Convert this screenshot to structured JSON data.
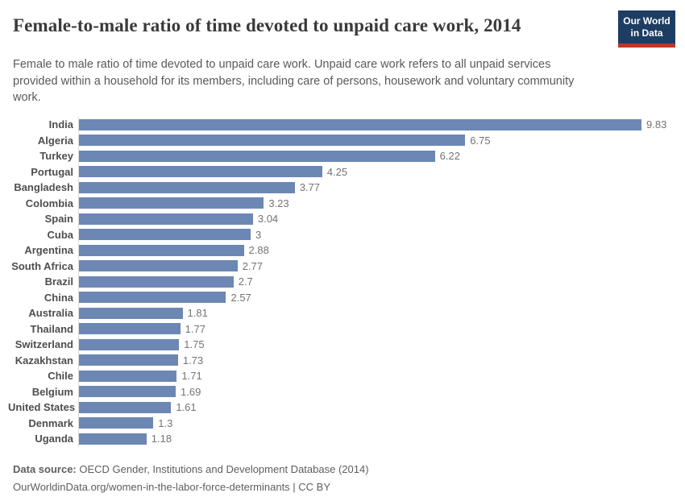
{
  "header": {
    "title": "Female-to-male ratio of time devoted to unpaid care work, 2014",
    "subtitle": "Female to male ratio of time devoted to unpaid care work. Unpaid care work refers to all unpaid services provided within a household for its members, including care of persons, housework and voluntary community work."
  },
  "logo": {
    "line1": "Our World",
    "line2": "in Data"
  },
  "chart_data": {
    "type": "bar",
    "orientation": "horizontal",
    "title": "Female-to-male ratio of time devoted to unpaid care work, 2014",
    "xlabel": "",
    "ylabel": "",
    "xlim": [
      0,
      9.83
    ],
    "grid": false,
    "legend": false,
    "categories": [
      "India",
      "Algeria",
      "Turkey",
      "Portugal",
      "Bangladesh",
      "Colombia",
      "Spain",
      "Cuba",
      "Argentina",
      "South Africa",
      "Brazil",
      "China",
      "Australia",
      "Thailand",
      "Switzerland",
      "Kazakhstan",
      "Chile",
      "Belgium",
      "United States",
      "Denmark",
      "Uganda"
    ],
    "values": [
      9.83,
      6.75,
      6.22,
      4.25,
      3.77,
      3.23,
      3.04,
      3,
      2.88,
      2.77,
      2.7,
      2.57,
      1.81,
      1.77,
      1.75,
      1.73,
      1.71,
      1.69,
      1.61,
      1.3,
      1.18
    ],
    "value_labels": [
      "9.83",
      "6.75",
      "6.22",
      "4.25",
      "3.77",
      "3.23",
      "3.04",
      "3",
      "2.88",
      "2.77",
      "2.7",
      "2.57",
      "1.81",
      "1.77",
      "1.75",
      "1.73",
      "1.71",
      "1.69",
      "1.61",
      "1.3",
      "1.18"
    ]
  },
  "footer": {
    "source_label": "Data source:",
    "source_text": "OECD Gender, Institutions and Development Database (2014)",
    "citation": "OurWorldinData.org/women-in-the-labor-force-determinants | CC BY"
  },
  "colors": {
    "bar": "#6c87b3",
    "logo_bg": "#1d3d63",
    "logo_underline": "#c0342d",
    "title_text": "#3a3a3a",
    "subtitle_text": "#595959",
    "label_text": "#4e4e4e",
    "value_text": "#737373",
    "axis_line": "#dcdcdc",
    "footer_text": "#5e5e5e"
  }
}
